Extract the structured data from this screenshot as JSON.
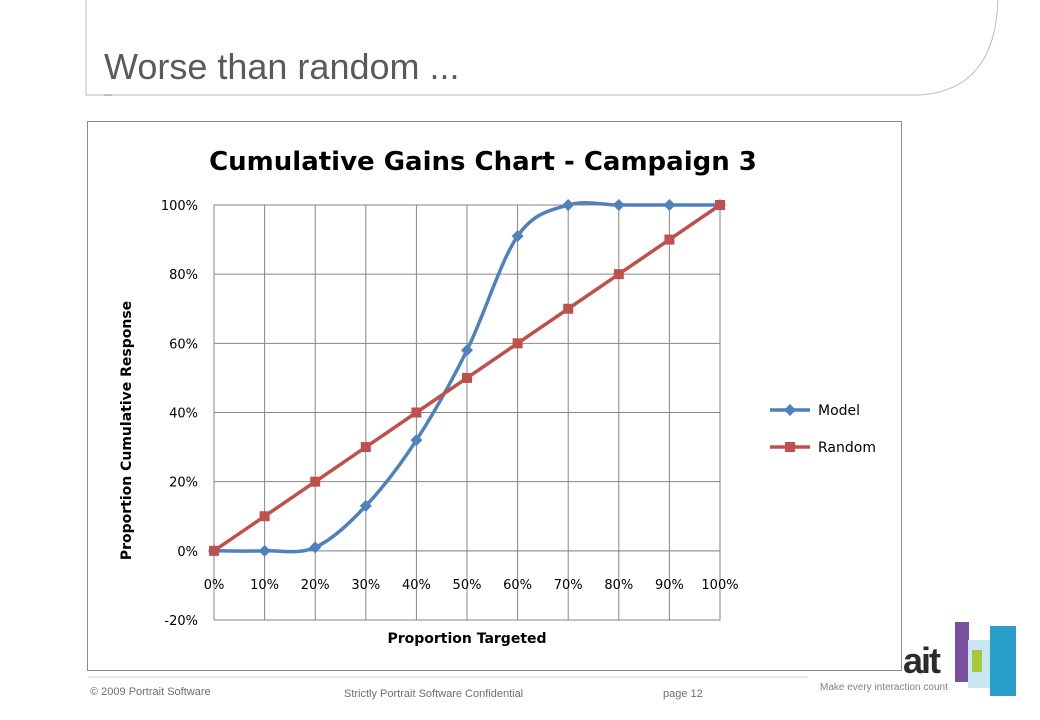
{
  "slide": {
    "title": "Worse than random ...",
    "footer_left": "© 2009 Portrait Software",
    "footer_center": "Strictly Portrait Software Confidential",
    "footer_page": "page 12"
  },
  "brand": {
    "wordmark": "ait",
    "tagline": "Make every interaction count",
    "colors": {
      "purple": "#7a4fa0",
      "cyan": "#2a9fc9",
      "lime": "#a8c83a"
    }
  },
  "chart_data": {
    "type": "line",
    "title": "Cumulative Gains Chart - Campaign 3",
    "xlabel": "Proportion Targeted",
    "ylabel": "Proportion Cumulative Response",
    "x": [
      0,
      10,
      20,
      30,
      40,
      50,
      60,
      70,
      80,
      90,
      100
    ],
    "x_tick_labels": [
      "0%",
      "10%",
      "20%",
      "30%",
      "40%",
      "50%",
      "60%",
      "70%",
      "80%",
      "90%",
      "100%"
    ],
    "y_tick_labels": [
      "-20%",
      "0%",
      "20%",
      "40%",
      "60%",
      "80%",
      "100%"
    ],
    "y_ticks": [
      -20,
      0,
      20,
      40,
      60,
      80,
      100
    ],
    "ylim": [
      -20,
      100
    ],
    "xlim": [
      0,
      100
    ],
    "grid": true,
    "legend_position": "right",
    "series": [
      {
        "name": "Model",
        "color": "#4f81bd",
        "marker": "diamond",
        "smooth": true,
        "values": [
          0,
          0,
          1,
          13,
          32,
          58,
          91,
          100,
          100,
          100,
          100
        ]
      },
      {
        "name": "Random",
        "color": "#c0504d",
        "marker": "square",
        "smooth": false,
        "values": [
          0,
          10,
          20,
          30,
          40,
          50,
          60,
          70,
          80,
          90,
          100
        ]
      }
    ]
  }
}
